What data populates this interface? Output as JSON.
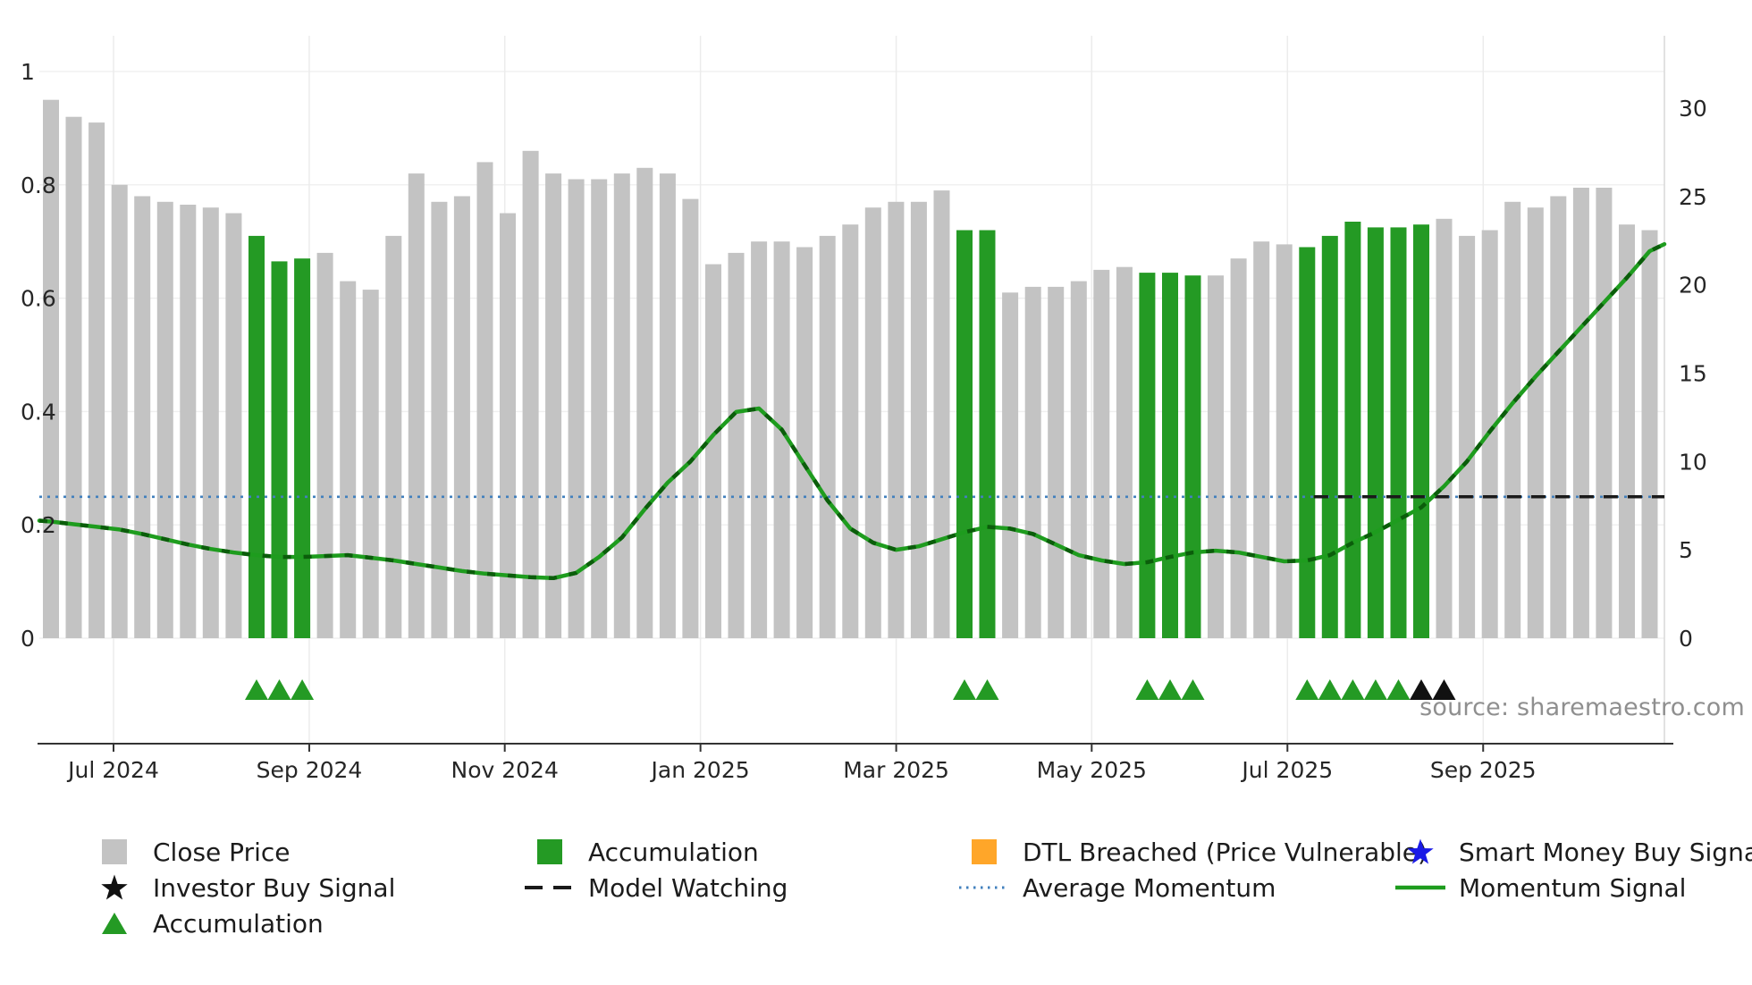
{
  "chart_data": {
    "type": "bar",
    "description": "Weekly close price bars with momentum signal line overlay",
    "x_ticks": [
      "Jul 2024",
      "Sep 2024",
      "Nov 2024",
      "Jan 2025",
      "Mar 2025",
      "May 2025",
      "Jul 2025",
      "Sep 2025"
    ],
    "x_tick_k": [
      2.74,
      11.31,
      19.87,
      28.44,
      37.01,
      45.57,
      54.14,
      62.71
    ],
    "left_axis": {
      "ticks": [
        "0",
        "0.2",
        "0.4",
        "0.6",
        "0.8",
        "1"
      ],
      "tick_values": [
        0,
        0.2,
        0.4,
        0.6,
        0.8,
        1
      ],
      "range": [
        0,
        1.05
      ]
    },
    "right_axis": {
      "ticks": [
        "0",
        "5",
        "10",
        "15",
        "20",
        "25",
        "30"
      ],
      "tick_values": [
        0,
        5,
        10,
        15,
        20,
        25,
        30
      ],
      "range": [
        0,
        33
      ]
    },
    "bars": {
      "name": "Close Price",
      "axis": "left",
      "values": [
        0.95,
        0.92,
        0.91,
        0.8,
        0.78,
        0.77,
        0.765,
        0.76,
        0.75,
        0.71,
        0.665,
        0.67,
        0.68,
        0.63,
        0.615,
        0.71,
        0.82,
        0.77,
        0.78,
        0.84,
        0.75,
        0.86,
        0.82,
        0.81,
        0.81,
        0.82,
        0.83,
        0.82,
        0.775,
        0.66,
        0.68,
        0.7,
        0.7,
        0.69,
        0.71,
        0.73,
        0.76,
        0.77,
        0.77,
        0.79,
        0.72,
        0.72,
        0.61,
        0.62,
        0.62,
        0.63,
        0.65,
        0.655,
        0.645,
        0.645,
        0.64,
        0.64,
        0.67,
        0.7,
        0.695,
        0.69,
        0.71,
        0.735,
        0.725,
        0.725,
        0.73,
        0.74,
        0.71,
        0.72,
        0.77,
        0.76,
        0.78,
        0.795,
        0.795,
        0.73,
        0.72
      ],
      "accumulation_indices": [
        9,
        10,
        11,
        40,
        41,
        48,
        49,
        50,
        55,
        56,
        57,
        58,
        59,
        60
      ]
    },
    "momentum": {
      "name": "Momentum Signal",
      "axis": "right",
      "edge_start": 6.65,
      "edge_end": 22.3,
      "values": [
        6.6,
        6.45,
        6.3,
        6.15,
        5.9,
        5.6,
        5.3,
        5.05,
        4.85,
        4.7,
        4.6,
        4.6,
        4.65,
        4.7,
        4.55,
        4.4,
        4.2,
        4.0,
        3.8,
        3.65,
        3.55,
        3.45,
        3.4,
        3.7,
        4.6,
        5.7,
        7.3,
        8.8,
        10.0,
        11.5,
        12.8,
        13.0,
        11.8,
        9.8,
        7.8,
        6.2,
        5.4,
        5.0,
        5.2,
        5.6,
        6.0,
        6.3,
        6.2,
        5.9,
        5.3,
        4.7,
        4.4,
        4.2,
        4.3,
        4.6,
        4.85,
        4.95,
        4.85,
        4.6,
        4.35,
        4.4,
        4.7,
        5.4,
        6.0,
        6.7,
        7.4,
        8.6,
        10.0,
        11.7,
        13.3,
        14.8,
        16.2,
        17.6,
        19.0,
        20.4,
        21.9
      ]
    },
    "average_momentum": {
      "name": "Average Momentum",
      "axis": "right",
      "value": 8
    },
    "model_watching": {
      "name": "Model Watching",
      "axis": "right",
      "value": 8,
      "start_k": 55.3
    },
    "markers": {
      "accumulation": [
        9,
        10,
        11,
        40,
        41,
        48,
        49,
        50,
        55,
        56,
        57,
        58,
        59
      ],
      "investor_buy": [
        60,
        61
      ]
    },
    "colors": {
      "close_price": "#c3c3c3",
      "accumulation": "#249a24",
      "momentum": "#1e9c1e",
      "momentum_dash": "#0b5d0b",
      "average_momentum": "#4280bd",
      "model_watching": "#1a1a1a",
      "investor_buy": "#111111",
      "dtl_breached": "#ffa629",
      "smart_money": "#1a1ae6",
      "axis_text": "#262626",
      "grid": "#ececec",
      "spine": "#d8d8d8",
      "axis_line": "#333333"
    },
    "source": "source: sharemaestro.com"
  },
  "legend": {
    "items": [
      {
        "label": "Close Price",
        "type": "square",
        "color": "#c3c3c3"
      },
      {
        "label": "Accumulation",
        "type": "square",
        "color": "#249a24"
      },
      {
        "label": "DTL Breached (Price Vulnerable)",
        "type": "square",
        "color": "#ffa629"
      },
      {
        "label": "Smart Money Buy Signal",
        "type": "star",
        "color": "#1a1ae6"
      },
      {
        "label": "Investor Buy Signal",
        "type": "star",
        "color": "#111111"
      },
      {
        "label": "Model Watching",
        "type": "dashed-line",
        "color": "#1a1a1a"
      },
      {
        "label": "Average Momentum",
        "type": "dotted-line",
        "color": "#4280bd"
      },
      {
        "label": "Momentum Signal",
        "type": "line",
        "color": "#1e9c1e"
      },
      {
        "label": "Accumulation",
        "type": "triangle",
        "color": "#249a24"
      }
    ]
  }
}
